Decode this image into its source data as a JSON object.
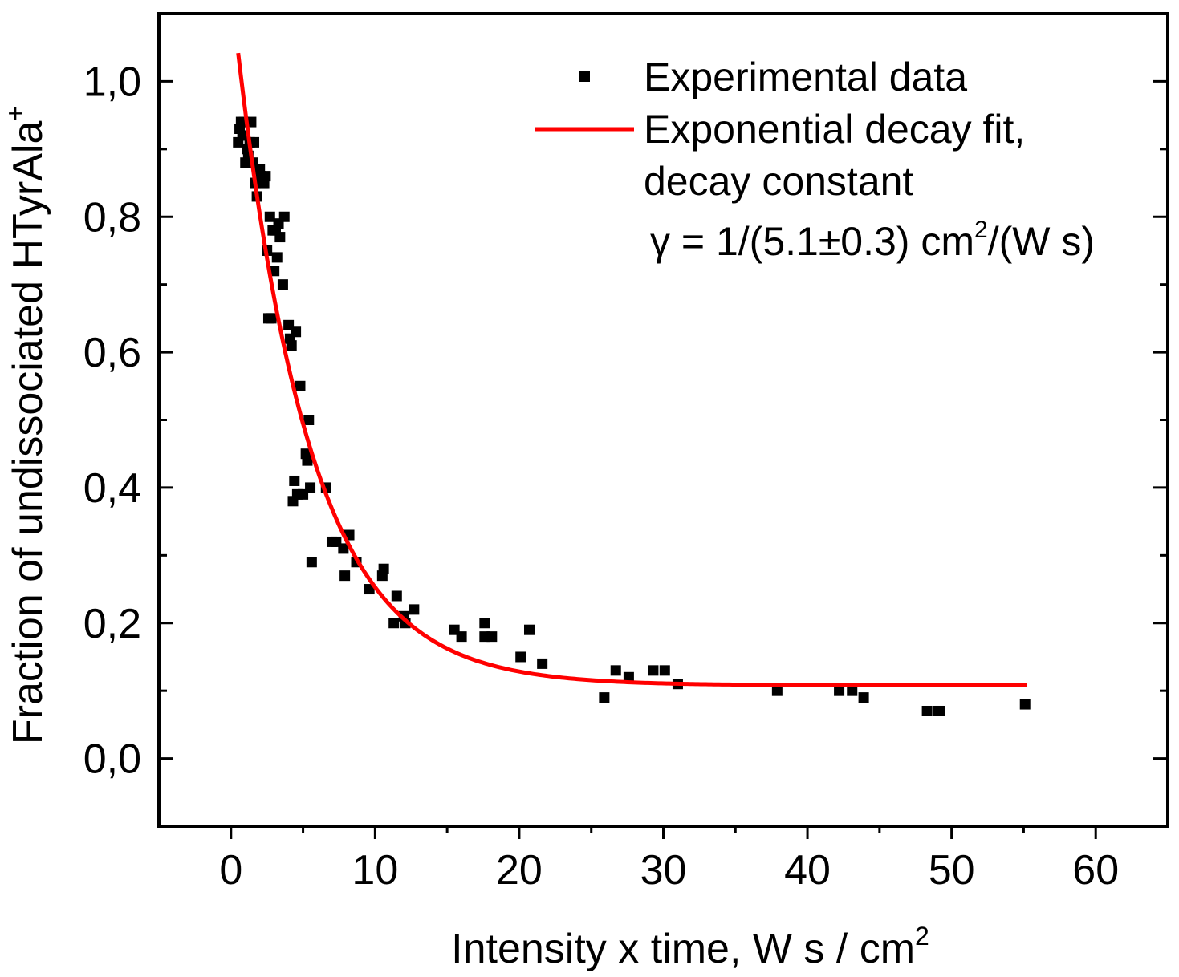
{
  "chart_data": {
    "type": "scatter",
    "title": "",
    "xlabel": "Intensity x time, W s / cm",
    "xlabel_sup": "2",
    "ylabel": "Fraction of undissociated HTyrAla",
    "ylabel_sup": "+",
    "xlim": [
      -5,
      65
    ],
    "ylim": [
      -0.1,
      1.1
    ],
    "xticks": [
      0,
      10,
      20,
      30,
      40,
      50,
      60
    ],
    "xtick_labels": [
      "0",
      "10",
      "20",
      "30",
      "40",
      "50",
      "60"
    ],
    "yticks": [
      0.0,
      0.2,
      0.4,
      0.6,
      0.8,
      1.0
    ],
    "ytick_labels": [
      "0,0",
      "0,2",
      "0,4",
      "0,6",
      "0,8",
      "1,0"
    ],
    "legend": {
      "position": "top-right",
      "experimental_label": "Experimental data",
      "fit_label_line1": "Exponential decay fit,",
      "fit_label_line2": "decay constant",
      "gamma_prefix": "γ = 1/(5.1",
      "gamma_pm": "±",
      "gamma_mid": "0.3) cm",
      "gamma_sup": "2",
      "gamma_suffix": "/(W s)"
    },
    "series": [
      {
        "name": "Experimental data",
        "style": "scatter",
        "color": "#000000",
        "points": [
          [
            0.5,
            0.91
          ],
          [
            0.6,
            0.93
          ],
          [
            0.7,
            0.94
          ],
          [
            0.8,
            0.92
          ],
          [
            0.9,
            0.94
          ],
          [
            1.0,
            0.88
          ],
          [
            1.1,
            0.9
          ],
          [
            1.2,
            0.89
          ],
          [
            1.3,
            0.91
          ],
          [
            1.4,
            0.94
          ],
          [
            1.5,
            0.88
          ],
          [
            1.6,
            0.91
          ],
          [
            1.7,
            0.85
          ],
          [
            1.8,
            0.83
          ],
          [
            1.9,
            0.87
          ],
          [
            2.0,
            0.87
          ],
          [
            2.1,
            0.86
          ],
          [
            2.2,
            0.85
          ],
          [
            2.3,
            0.85
          ],
          [
            2.4,
            0.86
          ],
          [
            2.5,
            0.75
          ],
          [
            2.6,
            0.65
          ],
          [
            2.7,
            0.8
          ],
          [
            2.8,
            0.65
          ],
          [
            2.9,
            0.78
          ],
          [
            3.0,
            0.72
          ],
          [
            3.1,
            0.78
          ],
          [
            3.2,
            0.74
          ],
          [
            3.3,
            0.79
          ],
          [
            3.4,
            0.77
          ],
          [
            3.6,
            0.7
          ],
          [
            3.7,
            0.8
          ],
          [
            4.0,
            0.64
          ],
          [
            4.1,
            0.62
          ],
          [
            4.2,
            0.61
          ],
          [
            4.3,
            0.38
          ],
          [
            4.4,
            0.41
          ],
          [
            4.5,
            0.63
          ],
          [
            4.6,
            0.39
          ],
          [
            4.8,
            0.55
          ],
          [
            5.0,
            0.39
          ],
          [
            5.2,
            0.45
          ],
          [
            5.3,
            0.44
          ],
          [
            5.4,
            0.5
          ],
          [
            5.5,
            0.4
          ],
          [
            5.6,
            0.29
          ],
          [
            6.6,
            0.4
          ],
          [
            7.0,
            0.32
          ],
          [
            7.3,
            0.32
          ],
          [
            7.8,
            0.31
          ],
          [
            7.9,
            0.27
          ],
          [
            8.2,
            0.33
          ],
          [
            8.7,
            0.29
          ],
          [
            9.6,
            0.25
          ],
          [
            10.5,
            0.27
          ],
          [
            10.6,
            0.28
          ],
          [
            11.3,
            0.2
          ],
          [
            11.5,
            0.24
          ],
          [
            12.0,
            0.21
          ],
          [
            12.1,
            0.2
          ],
          [
            12.7,
            0.22
          ],
          [
            15.5,
            0.19
          ],
          [
            16.0,
            0.18
          ],
          [
            17.6,
            0.2
          ],
          [
            17.6,
            0.18
          ],
          [
            18.1,
            0.18
          ],
          [
            20.1,
            0.15
          ],
          [
            20.7,
            0.19
          ],
          [
            21.6,
            0.14
          ],
          [
            25.9,
            0.09
          ],
          [
            26.7,
            0.13
          ],
          [
            27.6,
            0.12
          ],
          [
            29.3,
            0.13
          ],
          [
            30.1,
            0.13
          ],
          [
            31.0,
            0.11
          ],
          [
            37.9,
            0.1
          ],
          [
            42.2,
            0.1
          ],
          [
            43.1,
            0.1
          ],
          [
            43.9,
            0.09
          ],
          [
            48.3,
            0.07
          ],
          [
            49.1,
            0.07
          ],
          [
            49.2,
            0.07
          ],
          [
            55.1,
            0.08
          ]
        ]
      },
      {
        "name": "Exponential decay fit",
        "style": "line",
        "color": "#ff0000",
        "model": "y = y0 + A*exp(-x/t)",
        "params": {
          "y0": 0.108,
          "A": 1.03,
          "t": 5.1
        },
        "x_range": [
          0.5,
          55.2
        ]
      }
    ]
  }
}
